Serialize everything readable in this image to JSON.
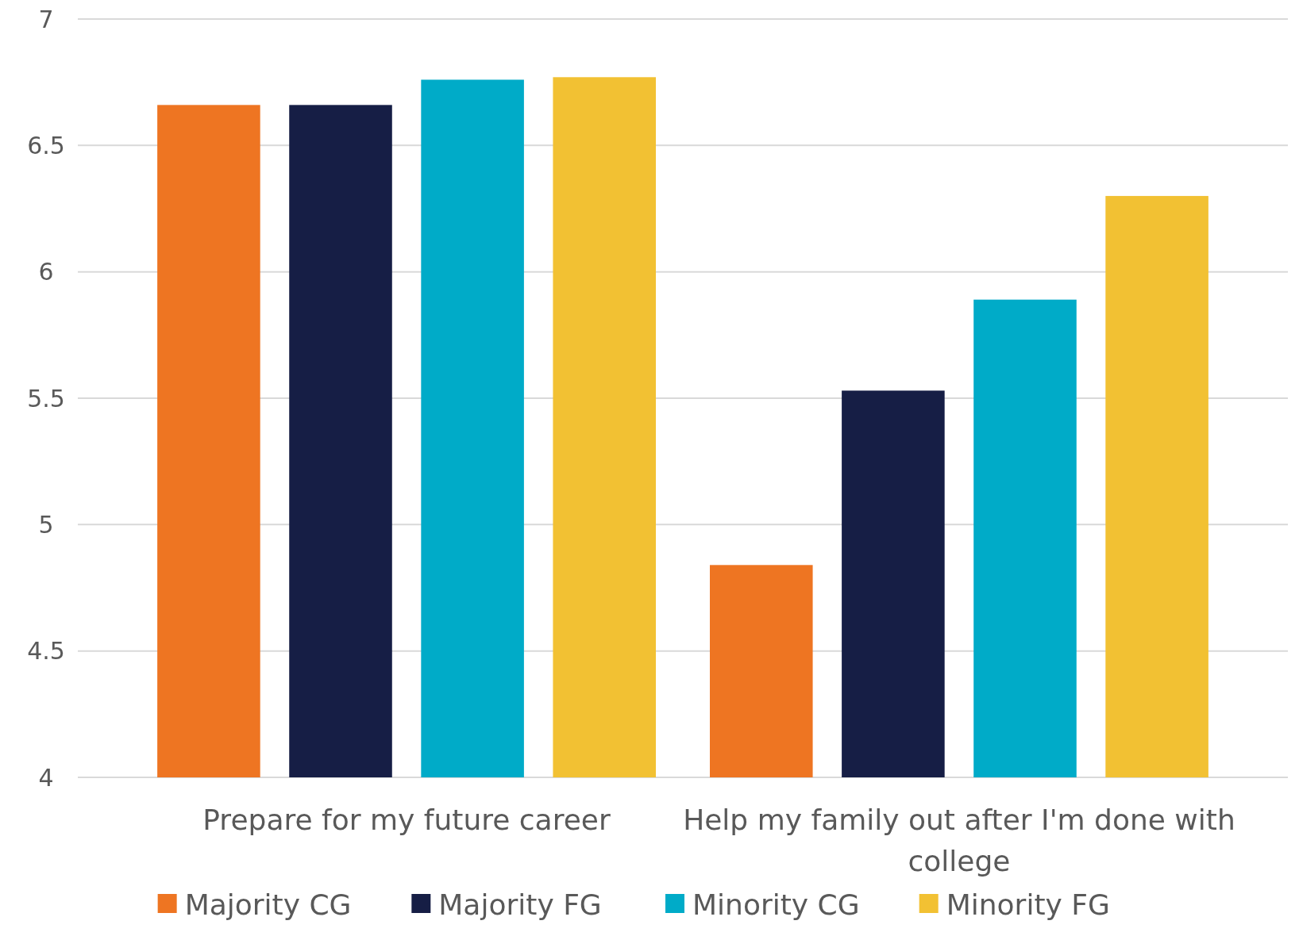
{
  "chart_data": {
    "type": "bar",
    "categories": [
      "Prepare for my future career",
      "Help my family out after I'm done with college"
    ],
    "series": [
      {
        "name": "Majority CG",
        "color": "#ee7522",
        "values": [
          6.66,
          4.84
        ]
      },
      {
        "name": "Majority FG",
        "color": "#161e45",
        "values": [
          6.66,
          5.53
        ]
      },
      {
        "name": "Minority CG",
        "color": "#00abc8",
        "values": [
          6.76,
          5.89
        ]
      },
      {
        "name": "Minority FG",
        "color": "#f2c133",
        "values": [
          6.77,
          6.3
        ]
      }
    ],
    "ylim": [
      4,
      7
    ],
    "yticks": [
      4,
      4.5,
      5,
      5.5,
      6,
      6.5,
      7
    ],
    "grid": "y",
    "legend": "bottom"
  }
}
